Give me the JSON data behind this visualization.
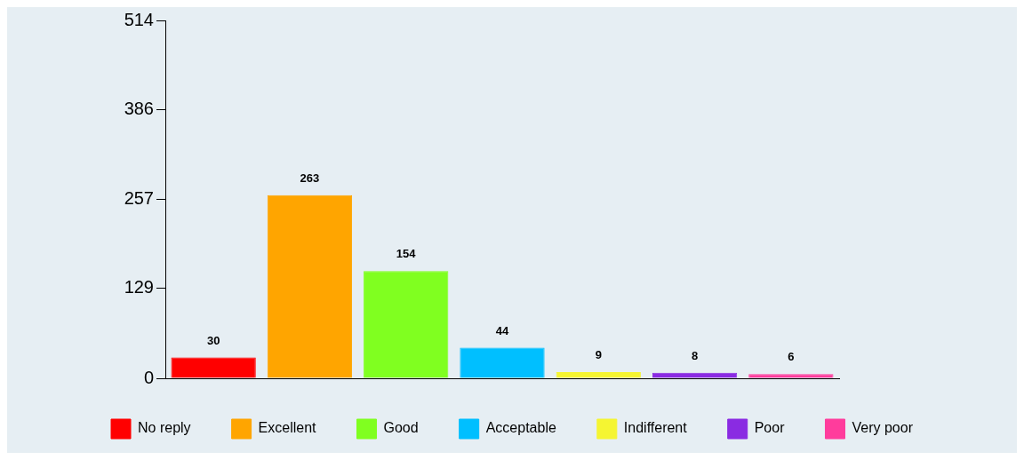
{
  "chart_data": {
    "type": "bar",
    "categories": [
      null,
      null,
      null,
      null,
      null,
      null,
      null
    ],
    "series": [
      {
        "name": "No reply",
        "color": "#ff0000",
        "values": [
          30,
          null,
          null,
          null,
          null,
          null,
          null
        ]
      },
      {
        "name": "Excellent",
        "color": "#ffa500",
        "values": [
          null,
          263,
          null,
          null,
          null,
          null,
          null
        ]
      },
      {
        "name": "Good",
        "color": "#80ff20",
        "values": [
          null,
          null,
          154,
          null,
          null,
          null,
          null
        ]
      },
      {
        "name": "Acceptable",
        "color": "#00bfff",
        "values": [
          null,
          null,
          null,
          44,
          null,
          null,
          null
        ]
      },
      {
        "name": "Indifferent",
        "color": "#f5f532",
        "values": [
          null,
          null,
          null,
          null,
          9,
          null,
          null
        ]
      },
      {
        "name": "Poor",
        "color": "#8a2be2",
        "values": [
          null,
          null,
          null,
          null,
          null,
          8,
          null
        ]
      },
      {
        "name": "Very poor",
        "color": "#ff3c9c",
        "values": [
          null,
          null,
          null,
          null,
          null,
          null,
          6
        ]
      }
    ],
    "ylim": [
      0,
      514
    ],
    "yticks": [
      0,
      129,
      257,
      386,
      514
    ],
    "grid": false,
    "legend": "bottom",
    "data_labels": true,
    "tick_labels": "y"
  }
}
